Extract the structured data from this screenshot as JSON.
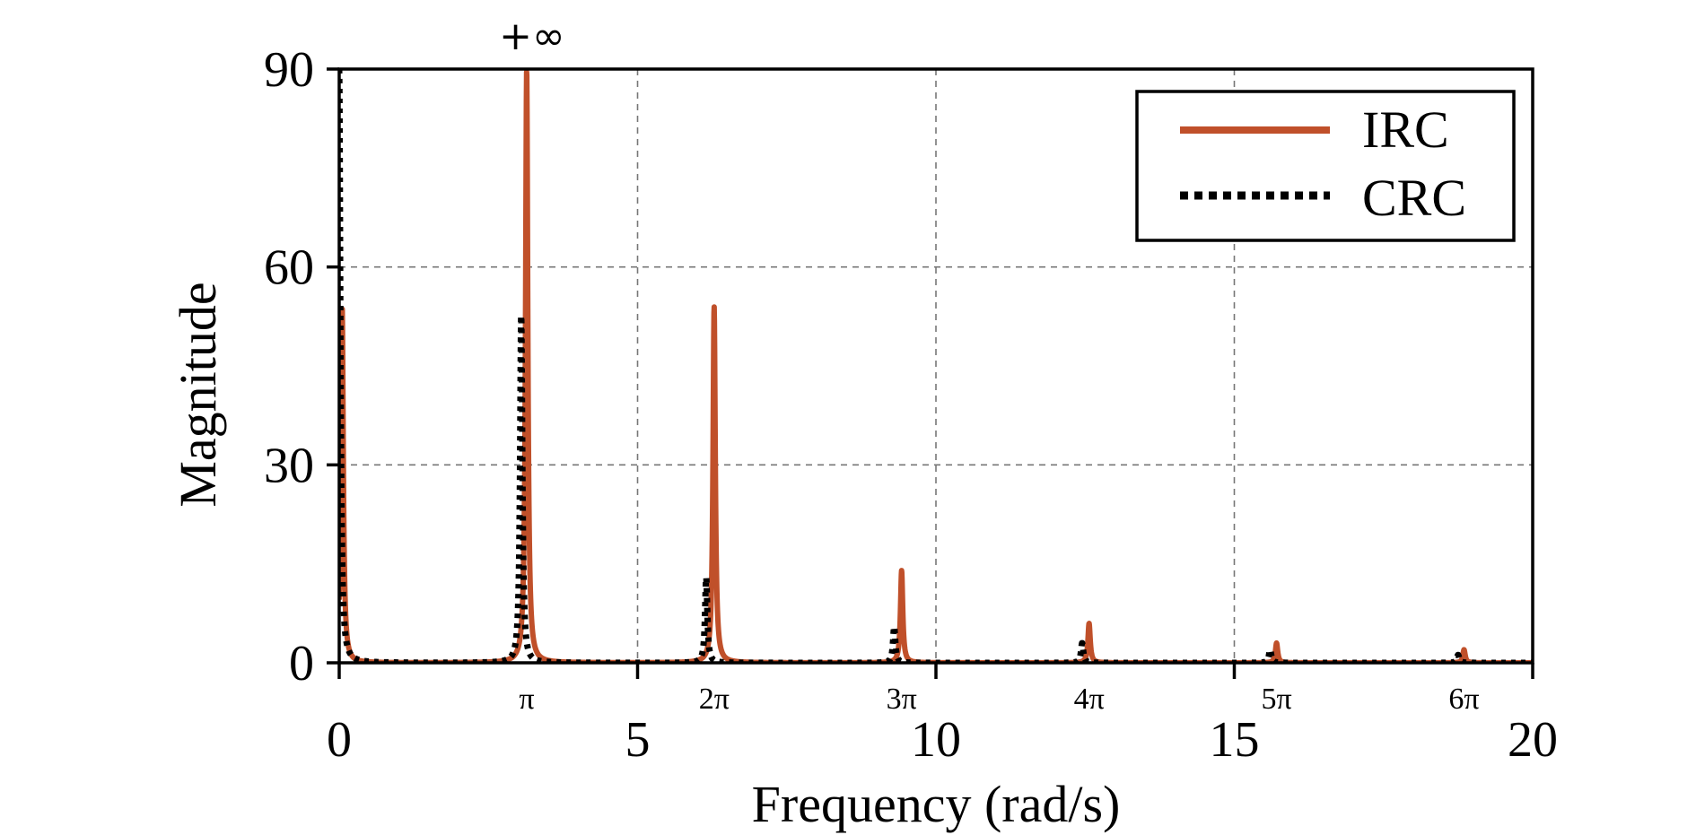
{
  "chart_data": {
    "type": "line",
    "xlabel": "Frequency (rad/s)",
    "ylabel": "Magnitude",
    "xlim": [
      0,
      20
    ],
    "ylim": [
      0,
      90
    ],
    "x_ticks": [
      "0",
      "5",
      "10",
      "15",
      "20"
    ],
    "y_ticks": [
      "0",
      "30",
      "60",
      "90"
    ],
    "pi_ticks": [
      {
        "label": "π",
        "value": 3.1416
      },
      {
        "label": "2π",
        "value": 6.2832
      },
      {
        "label": "3π",
        "value": 9.4248
      },
      {
        "label": "4π",
        "value": 12.5664
      },
      {
        "label": "5π",
        "value": 15.708
      },
      {
        "label": "6π",
        "value": 18.8496
      }
    ],
    "grid": true,
    "legend_position": "top-right",
    "annotations": [
      {
        "text": "+∞",
        "x": 3.1416,
        "y": 90
      }
    ],
    "series": [
      {
        "name": "IRC",
        "color": "#c0502a",
        "style": "solid",
        "peaks": [
          {
            "x": 0.05,
            "y": 54
          },
          {
            "x": 3.1416,
            "y": 90,
            "infinite": true
          },
          {
            "x": 6.2832,
            "y": 54
          },
          {
            "x": 9.4248,
            "y": 14
          },
          {
            "x": 12.5664,
            "y": 6
          },
          {
            "x": 15.708,
            "y": 3
          },
          {
            "x": 18.8496,
            "y": 2
          }
        ]
      },
      {
        "name": "CRC",
        "color": "#000000",
        "style": "dotted",
        "peaks": [
          {
            "x": 0.0,
            "y": 90
          },
          {
            "x": 3.05,
            "y": 53
          },
          {
            "x": 6.15,
            "y": 13
          },
          {
            "x": 9.3,
            "y": 5.5
          },
          {
            "x": 12.45,
            "y": 3
          },
          {
            "x": 15.6,
            "y": 2
          },
          {
            "x": 18.75,
            "y": 1.2
          }
        ]
      }
    ]
  }
}
